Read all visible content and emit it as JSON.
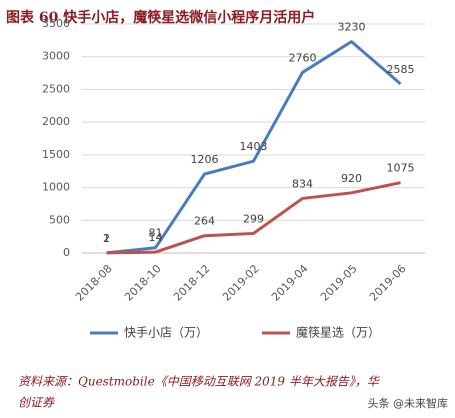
{
  "chart_data": {
    "type": "line",
    "title": "图表 60  快手小店，魔筷星选微信小程序月活用户",
    "categories": [
      "2018-08",
      "2018-10",
      "2018-12",
      "2019-02",
      "2019-04",
      "2019-05",
      "2019-06"
    ],
    "series": [
      {
        "name": "快手小店（万）",
        "color": "#4a7bc1",
        "values": [
          2,
          81,
          1206,
          1403,
          2760,
          3230,
          2585
        ]
      },
      {
        "name": "魔筷星选（万）",
        "color": "#c0504d",
        "values": [
          1,
          14,
          264,
          299,
          834,
          920,
          1075
        ]
      }
    ],
    "ylim": [
      0,
      3500
    ],
    "yticks": [
      0,
      500,
      1000,
      1500,
      2000,
      2500,
      3000,
      3500
    ],
    "grid": true,
    "source": [
      "资料来源：Questmobile《中国移动互联网 2019 半年大报告》，华",
      "创证券"
    ],
    "watermark": "头条 @未来智库"
  }
}
